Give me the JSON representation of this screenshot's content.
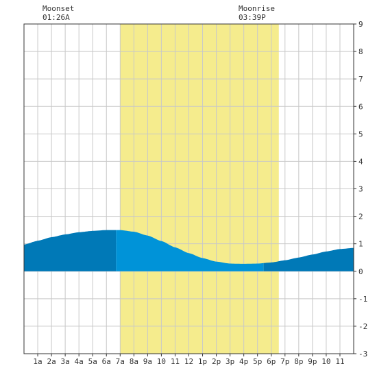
{
  "moon": {
    "set_label": "Moonset",
    "set_time": "01:26A",
    "rise_label": "Moonrise",
    "rise_time": "03:39P"
  },
  "chart_data": {
    "type": "area",
    "title": "",
    "xlabel": "",
    "ylabel": "",
    "x_ticks": [
      "1a",
      "2a",
      "3a",
      "4a",
      "5a",
      "6a",
      "7a",
      "8a",
      "9a",
      "10",
      "11",
      "12",
      "1p",
      "2p",
      "3p",
      "4p",
      "5p",
      "6p",
      "7p",
      "8p",
      "9p",
      "10",
      "11"
    ],
    "y_ticks": [
      "9",
      "8",
      "7",
      "6",
      "5",
      "4",
      "3",
      "2",
      "1",
      "0",
      "-1",
      "-2",
      "-3"
    ],
    "xlim_hours": [
      0,
      24
    ],
    "ylim": [
      -3,
      9
    ],
    "grid": true,
    "daylight_hours": [
      7,
      18.55
    ],
    "tide_series": [
      {
        "hour": 0,
        "level": 0.97
      },
      {
        "hour": 1,
        "level": 1.11
      },
      {
        "hour": 2,
        "level": 1.24
      },
      {
        "hour": 3,
        "level": 1.34
      },
      {
        "hour": 4,
        "level": 1.42
      },
      {
        "hour": 5,
        "level": 1.47
      },
      {
        "hour": 6,
        "level": 1.5
      },
      {
        "hour": 6.7,
        "level": 1.5
      },
      {
        "hour": 7,
        "level": 1.5
      },
      {
        "hour": 8,
        "level": 1.44
      },
      {
        "hour": 9,
        "level": 1.3
      },
      {
        "hour": 10,
        "level": 1.1
      },
      {
        "hour": 11,
        "level": 0.87
      },
      {
        "hour": 12,
        "level": 0.66
      },
      {
        "hour": 13,
        "level": 0.48
      },
      {
        "hour": 14,
        "level": 0.35
      },
      {
        "hour": 15,
        "level": 0.28
      },
      {
        "hour": 16,
        "level": 0.27
      },
      {
        "hour": 17,
        "level": 0.28
      },
      {
        "hour": 18,
        "level": 0.32
      },
      {
        "hour": 19,
        "level": 0.4
      },
      {
        "hour": 20,
        "level": 0.5
      },
      {
        "hour": 21,
        "level": 0.61
      },
      {
        "hour": 22,
        "level": 0.72
      },
      {
        "hour": 23,
        "level": 0.81
      },
      {
        "hour": 24,
        "level": 0.85
      }
    ],
    "colors": {
      "daylight": "#f5ec8d",
      "tide_day": "#0093d8",
      "tide_night": "#0079b7",
      "grid": "#c8c8c8",
      "axis": "#333333"
    }
  }
}
